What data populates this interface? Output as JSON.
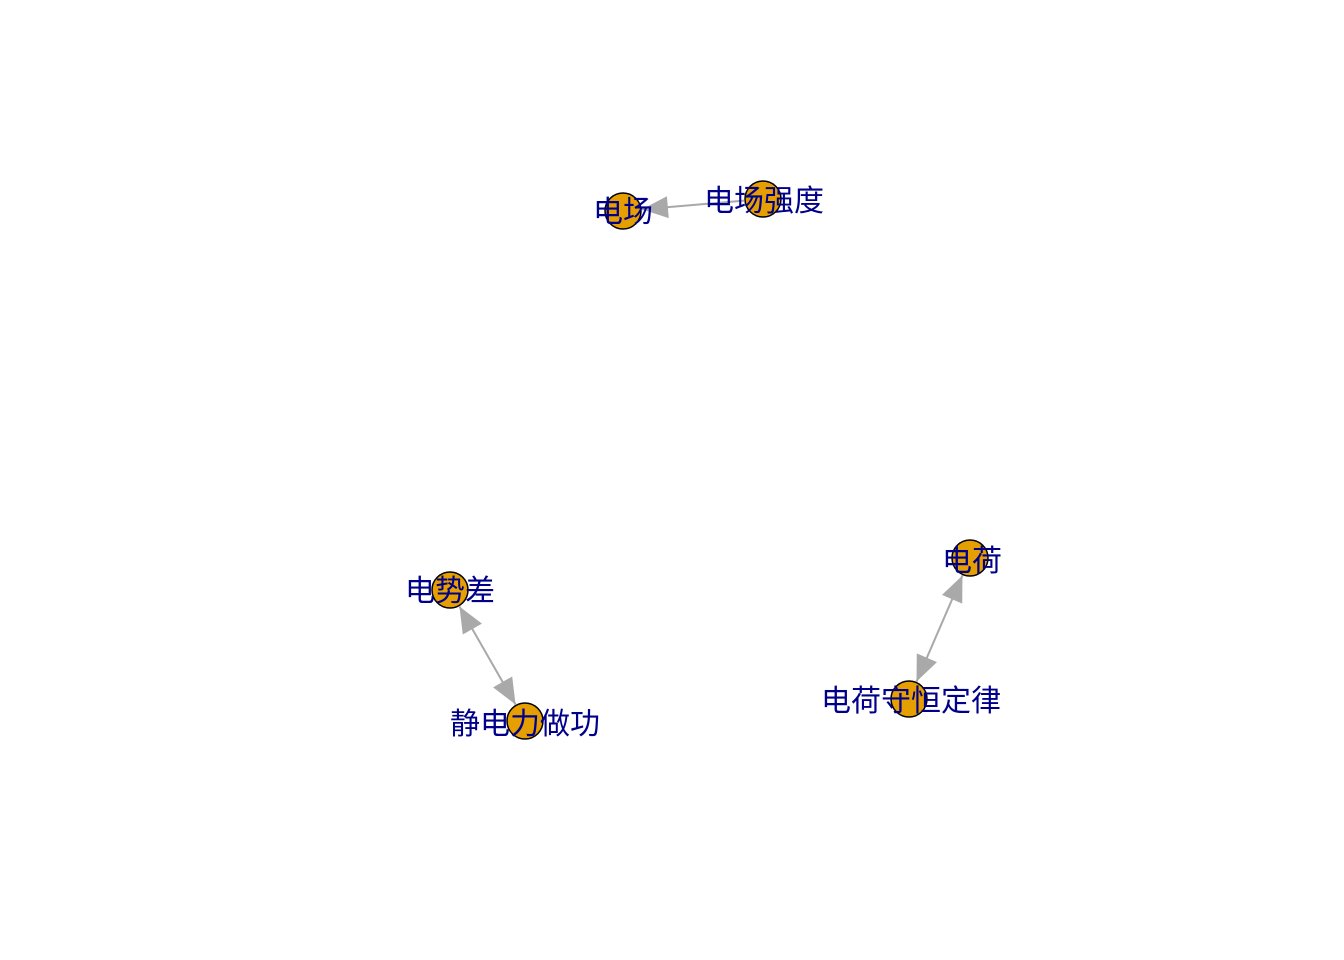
{
  "graph": {
    "type": "network",
    "node_color": "#e69f00",
    "node_border_color": "#000000",
    "edge_color": "#a9a9a9",
    "label_color": "#00008b",
    "nodes": [
      {
        "id": "dianchang",
        "label": "电场"
      },
      {
        "id": "dianchang_qiangdu",
        "label": "电场强度"
      },
      {
        "id": "dianshicha",
        "label": "电势差"
      },
      {
        "id": "jingdianli_zuogong",
        "label": "静电力做功"
      },
      {
        "id": "dianhe",
        "label": "电荷"
      },
      {
        "id": "dianhe_shouheng",
        "label": "电荷守恒定律"
      }
    ],
    "edges": [
      {
        "from": "dianchang_qiangdu",
        "to": "dianchang",
        "arrows": "to"
      },
      {
        "from": "dianshicha",
        "to": "jingdianli_zuogong",
        "arrows": "both"
      },
      {
        "from": "dianhe",
        "to": "dianhe_shouheng",
        "arrows": "both"
      }
    ]
  }
}
